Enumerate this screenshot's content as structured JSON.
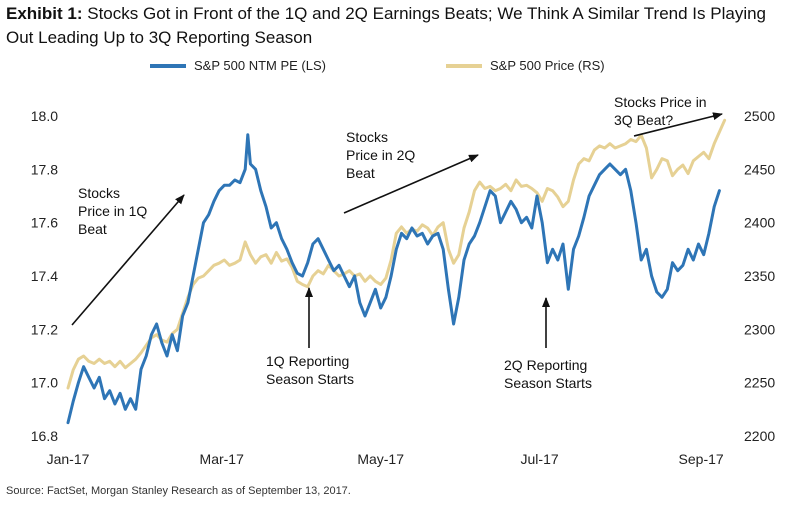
{
  "title": {
    "exhibit": "Exhibit 1:",
    "text": "Stocks Got in Front of the 1Q and 2Q Earnings Beats; We Think A Similar Trend Is Playing Out Leading Up to 3Q Reporting Season"
  },
  "source": "Source: FactSet, Morgan Stanley Research as of September 13, 2017.",
  "colors": {
    "pe": "#2e75b6",
    "price": "#e6d194",
    "arrow": "#111111"
  },
  "chart_data": {
    "type": "line",
    "x_ticks": [
      "Jan-17",
      "Mar-17",
      "May-17",
      "Jul-17",
      "Sep-17"
    ],
    "x_tick_pos": [
      0,
      59,
      120,
      181,
      243
    ],
    "x_range": [
      0,
      256
    ],
    "y_left": {
      "ticks": [
        "16.8",
        "17.0",
        "17.2",
        "17.4",
        "17.6",
        "17.8",
        "18.0"
      ],
      "range": [
        16.8,
        18.0
      ]
    },
    "y_right": {
      "ticks": [
        "2200",
        "2250",
        "2300",
        "2350",
        "2400",
        "2450",
        "2500"
      ],
      "range": [
        2200,
        2500
      ]
    },
    "series": [
      {
        "name": "S&P 500 NTM PE (LS)",
        "axis": "left",
        "points": [
          [
            0,
            16.85
          ],
          [
            2,
            16.93
          ],
          [
            4,
            17.0
          ],
          [
            6,
            17.06
          ],
          [
            8,
            17.02
          ],
          [
            10,
            16.98
          ],
          [
            12,
            17.02
          ],
          [
            14,
            16.94
          ],
          [
            16,
            16.97
          ],
          [
            18,
            16.92
          ],
          [
            20,
            16.96
          ],
          [
            22,
            16.9
          ],
          [
            24,
            16.94
          ],
          [
            26,
            16.9
          ],
          [
            28,
            17.05
          ],
          [
            30,
            17.1
          ],
          [
            32,
            17.18
          ],
          [
            34,
            17.22
          ],
          [
            36,
            17.15
          ],
          [
            38,
            17.1
          ],
          [
            40,
            17.18
          ],
          [
            42,
            17.12
          ],
          [
            44,
            17.25
          ],
          [
            46,
            17.3
          ],
          [
            48,
            17.4
          ],
          [
            50,
            17.5
          ],
          [
            52,
            17.6
          ],
          [
            54,
            17.63
          ],
          [
            56,
            17.68
          ],
          [
            58,
            17.72
          ],
          [
            60,
            17.74
          ],
          [
            62,
            17.74
          ],
          [
            64,
            17.76
          ],
          [
            66,
            17.75
          ],
          [
            68,
            17.8
          ],
          [
            69,
            17.93
          ],
          [
            70,
            17.82
          ],
          [
            72,
            17.8
          ],
          [
            74,
            17.72
          ],
          [
            76,
            17.66
          ],
          [
            78,
            17.58
          ],
          [
            80,
            17.6
          ],
          [
            82,
            17.54
          ],
          [
            84,
            17.5
          ],
          [
            86,
            17.45
          ],
          [
            88,
            17.41
          ],
          [
            90,
            17.4
          ],
          [
            92,
            17.45
          ],
          [
            94,
            17.52
          ],
          [
            96,
            17.54
          ],
          [
            98,
            17.5
          ],
          [
            100,
            17.46
          ],
          [
            102,
            17.42
          ],
          [
            104,
            17.44
          ],
          [
            106,
            17.4
          ],
          [
            108,
            17.36
          ],
          [
            110,
            17.4
          ],
          [
            112,
            17.3
          ],
          [
            114,
            17.25
          ],
          [
            116,
            17.3
          ],
          [
            118,
            17.35
          ],
          [
            120,
            17.28
          ],
          [
            122,
            17.32
          ],
          [
            124,
            17.4
          ],
          [
            126,
            17.5
          ],
          [
            128,
            17.56
          ],
          [
            130,
            17.54
          ],
          [
            132,
            17.58
          ],
          [
            134,
            17.55
          ],
          [
            136,
            17.56
          ],
          [
            138,
            17.52
          ],
          [
            140,
            17.55
          ],
          [
            142,
            17.56
          ],
          [
            144,
            17.5
          ],
          [
            146,
            17.35
          ],
          [
            148,
            17.22
          ],
          [
            150,
            17.32
          ],
          [
            152,
            17.46
          ],
          [
            154,
            17.52
          ],
          [
            156,
            17.55
          ],
          [
            158,
            17.6
          ],
          [
            160,
            17.66
          ],
          [
            162,
            17.72
          ],
          [
            164,
            17.7
          ],
          [
            166,
            17.6
          ],
          [
            168,
            17.64
          ],
          [
            170,
            17.68
          ],
          [
            172,
            17.65
          ],
          [
            174,
            17.6
          ],
          [
            176,
            17.62
          ],
          [
            178,
            17.58
          ],
          [
            180,
            17.7
          ],
          [
            182,
            17.6
          ],
          [
            184,
            17.45
          ],
          [
            186,
            17.5
          ],
          [
            188,
            17.46
          ],
          [
            190,
            17.52
          ],
          [
            192,
            17.35
          ],
          [
            194,
            17.5
          ],
          [
            196,
            17.55
          ],
          [
            198,
            17.62
          ],
          [
            200,
            17.7
          ],
          [
            202,
            17.74
          ],
          [
            204,
            17.78
          ],
          [
            206,
            17.8
          ],
          [
            208,
            17.82
          ],
          [
            210,
            17.8
          ],
          [
            212,
            17.78
          ],
          [
            214,
            17.8
          ],
          [
            216,
            17.72
          ],
          [
            218,
            17.6
          ],
          [
            220,
            17.46
          ],
          [
            222,
            17.5
          ],
          [
            224,
            17.4
          ],
          [
            226,
            17.34
          ],
          [
            228,
            17.32
          ],
          [
            230,
            17.35
          ],
          [
            232,
            17.45
          ],
          [
            234,
            17.42
          ],
          [
            236,
            17.44
          ],
          [
            238,
            17.5
          ],
          [
            240,
            17.46
          ],
          [
            242,
            17.52
          ],
          [
            244,
            17.48
          ],
          [
            246,
            17.56
          ],
          [
            248,
            17.66
          ],
          [
            250,
            17.72
          ]
        ]
      },
      {
        "name": "S&P 500 Price (RS)",
        "axis": "right",
        "points": [
          [
            0,
            2245
          ],
          [
            2,
            2262
          ],
          [
            4,
            2272
          ],
          [
            6,
            2275
          ],
          [
            8,
            2270
          ],
          [
            10,
            2268
          ],
          [
            12,
            2272
          ],
          [
            14,
            2268
          ],
          [
            16,
            2270
          ],
          [
            18,
            2265
          ],
          [
            20,
            2270
          ],
          [
            22,
            2264
          ],
          [
            24,
            2268
          ],
          [
            26,
            2272
          ],
          [
            28,
            2278
          ],
          [
            30,
            2285
          ],
          [
            32,
            2292
          ],
          [
            34,
            2295
          ],
          [
            36,
            2290
          ],
          [
            38,
            2288
          ],
          [
            40,
            2296
          ],
          [
            42,
            2300
          ],
          [
            44,
            2315
          ],
          [
            46,
            2330
          ],
          [
            48,
            2342
          ],
          [
            50,
            2348
          ],
          [
            52,
            2350
          ],
          [
            54,
            2355
          ],
          [
            56,
            2360
          ],
          [
            58,
            2362
          ],
          [
            60,
            2365
          ],
          [
            62,
            2360
          ],
          [
            64,
            2362
          ],
          [
            66,
            2365
          ],
          [
            68,
            2382
          ],
          [
            70,
            2370
          ],
          [
            72,
            2362
          ],
          [
            74,
            2368
          ],
          [
            76,
            2370
          ],
          [
            78,
            2362
          ],
          [
            80,
            2372
          ],
          [
            82,
            2364
          ],
          [
            84,
            2366
          ],
          [
            86,
            2358
          ],
          [
            88,
            2345
          ],
          [
            90,
            2342
          ],
          [
            92,
            2340
          ],
          [
            94,
            2350
          ],
          [
            96,
            2355
          ],
          [
            98,
            2352
          ],
          [
            100,
            2360
          ],
          [
            102,
            2355
          ],
          [
            104,
            2350
          ],
          [
            106,
            2352
          ],
          [
            108,
            2355
          ],
          [
            110,
            2350
          ],
          [
            112,
            2352
          ],
          [
            114,
            2345
          ],
          [
            116,
            2350
          ],
          [
            118,
            2345
          ],
          [
            120,
            2342
          ],
          [
            122,
            2348
          ],
          [
            124,
            2365
          ],
          [
            126,
            2390
          ],
          [
            128,
            2396
          ],
          [
            130,
            2390
          ],
          [
            132,
            2394
          ],
          [
            134,
            2392
          ],
          [
            136,
            2398
          ],
          [
            138,
            2395
          ],
          [
            140,
            2388
          ],
          [
            142,
            2396
          ],
          [
            144,
            2400
          ],
          [
            146,
            2375
          ],
          [
            148,
            2362
          ],
          [
            150,
            2370
          ],
          [
            152,
            2395
          ],
          [
            154,
            2410
          ],
          [
            156,
            2430
          ],
          [
            158,
            2438
          ],
          [
            160,
            2432
          ],
          [
            162,
            2434
          ],
          [
            164,
            2430
          ],
          [
            166,
            2432
          ],
          [
            168,
            2436
          ],
          [
            170,
            2430
          ],
          [
            172,
            2440
          ],
          [
            174,
            2434
          ],
          [
            176,
            2435
          ],
          [
            178,
            2432
          ],
          [
            180,
            2428
          ],
          [
            182,
            2420
          ],
          [
            184,
            2432
          ],
          [
            186,
            2430
          ],
          [
            188,
            2424
          ],
          [
            190,
            2415
          ],
          [
            192,
            2420
          ],
          [
            194,
            2440
          ],
          [
            196,
            2455
          ],
          [
            198,
            2460
          ],
          [
            200,
            2458
          ],
          [
            202,
            2468
          ],
          [
            204,
            2472
          ],
          [
            206,
            2470
          ],
          [
            208,
            2474
          ],
          [
            210,
            2470
          ],
          [
            212,
            2472
          ],
          [
            214,
            2474
          ],
          [
            216,
            2478
          ],
          [
            218,
            2476
          ],
          [
            220,
            2482
          ],
          [
            222,
            2470
          ],
          [
            224,
            2442
          ],
          [
            226,
            2450
          ],
          [
            228,
            2460
          ],
          [
            230,
            2458
          ],
          [
            232,
            2444
          ],
          [
            234,
            2450
          ],
          [
            236,
            2454
          ],
          [
            238,
            2446
          ],
          [
            240,
            2458
          ],
          [
            242,
            2462
          ],
          [
            244,
            2466
          ],
          [
            246,
            2460
          ],
          [
            248,
            2474
          ],
          [
            250,
            2485
          ],
          [
            252,
            2496
          ]
        ]
      }
    ],
    "annotations": [
      {
        "lines": [
          "Stocks",
          "Price in 1Q",
          "Beat"
        ]
      },
      {
        "lines": [
          "Stocks",
          "Price in 2Q",
          "Beat"
        ]
      },
      {
        "lines": [
          "Stocks Price in",
          "3Q Beat?"
        ]
      },
      {
        "lines": [
          "1Q Reporting",
          "Season Starts"
        ]
      },
      {
        "lines": [
          "2Q Reporting",
          "Season Starts"
        ]
      }
    ]
  }
}
